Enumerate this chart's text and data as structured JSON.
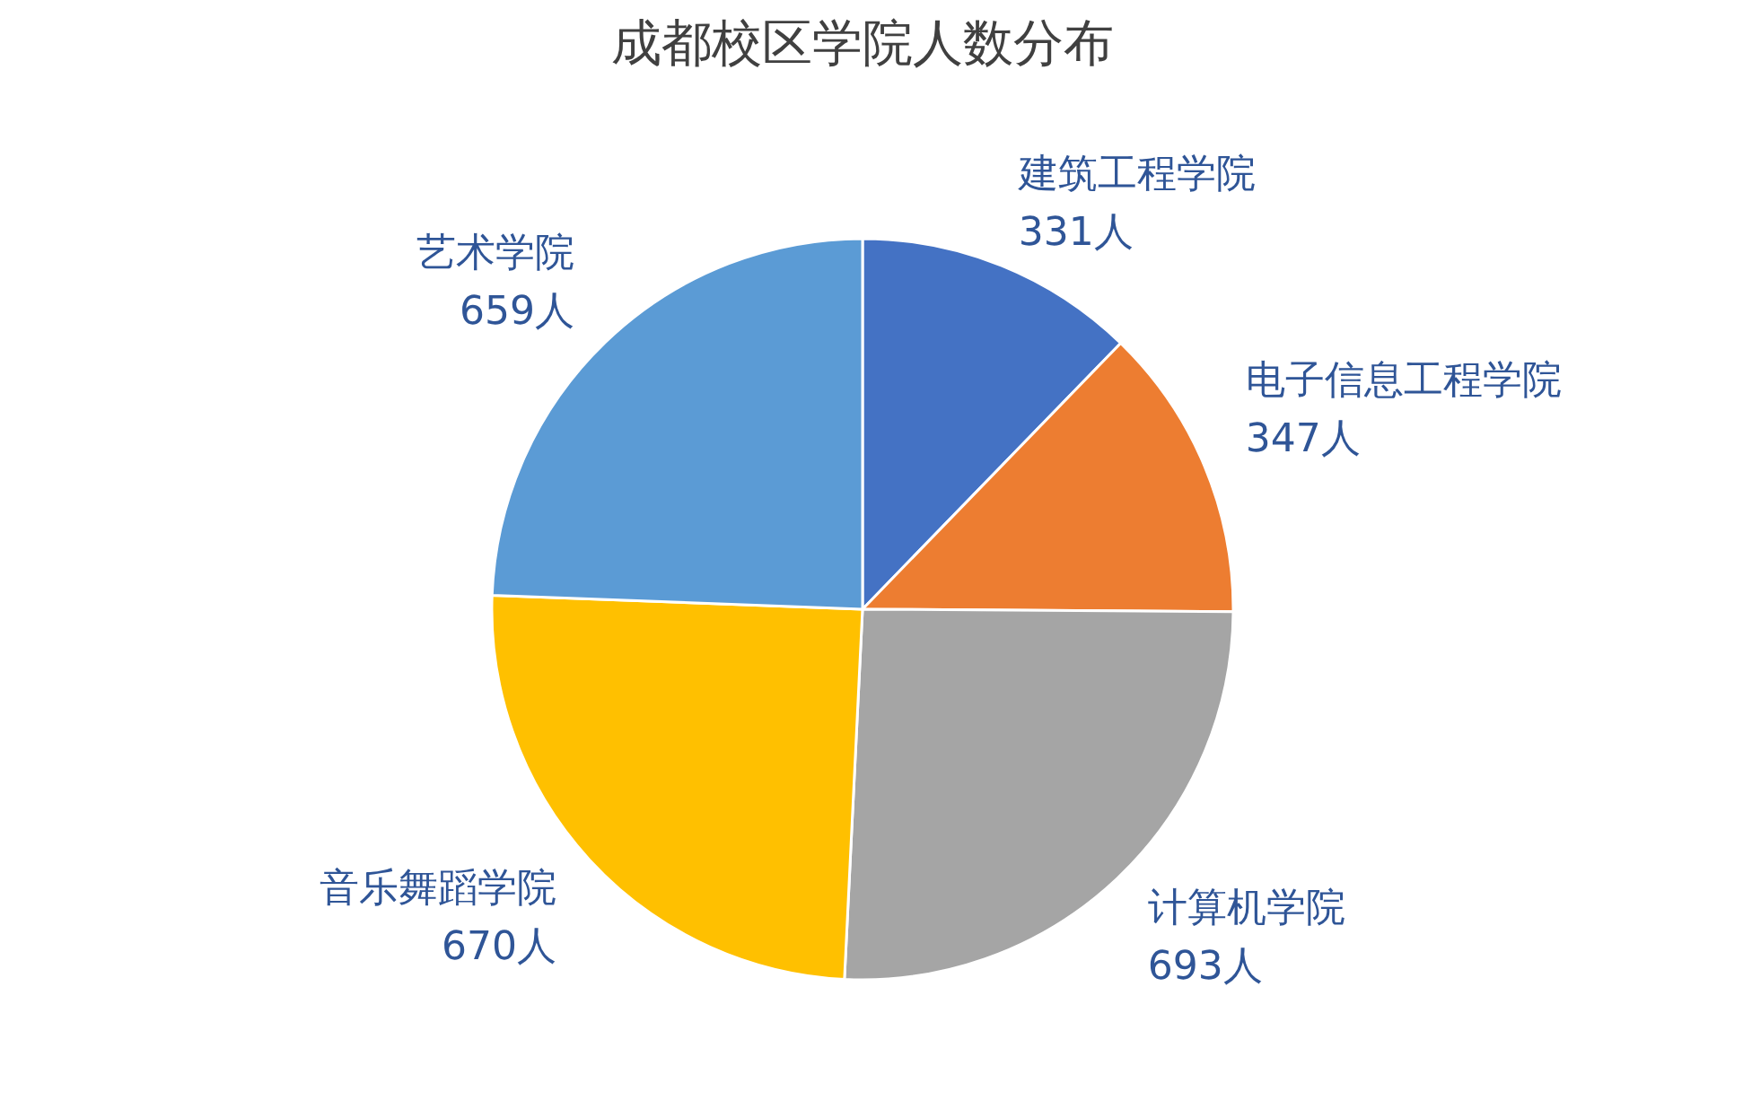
{
  "chart_data": {
    "type": "pie",
    "title": "成都校区学院人数分布",
    "categories": [
      "建筑工程学院",
      "电子信息工程学院",
      "计算机学院",
      "音乐舞蹈学院",
      "艺术学院"
    ],
    "values": [
      331,
      347,
      693,
      670,
      659
    ],
    "value_labels": [
      "331人",
      "347人",
      "693人",
      "670人",
      "659人"
    ],
    "colors": [
      "#4472c4",
      "#ed7d31",
      "#a5a5a5",
      "#ffc000",
      "#5b9bd5"
    ]
  }
}
